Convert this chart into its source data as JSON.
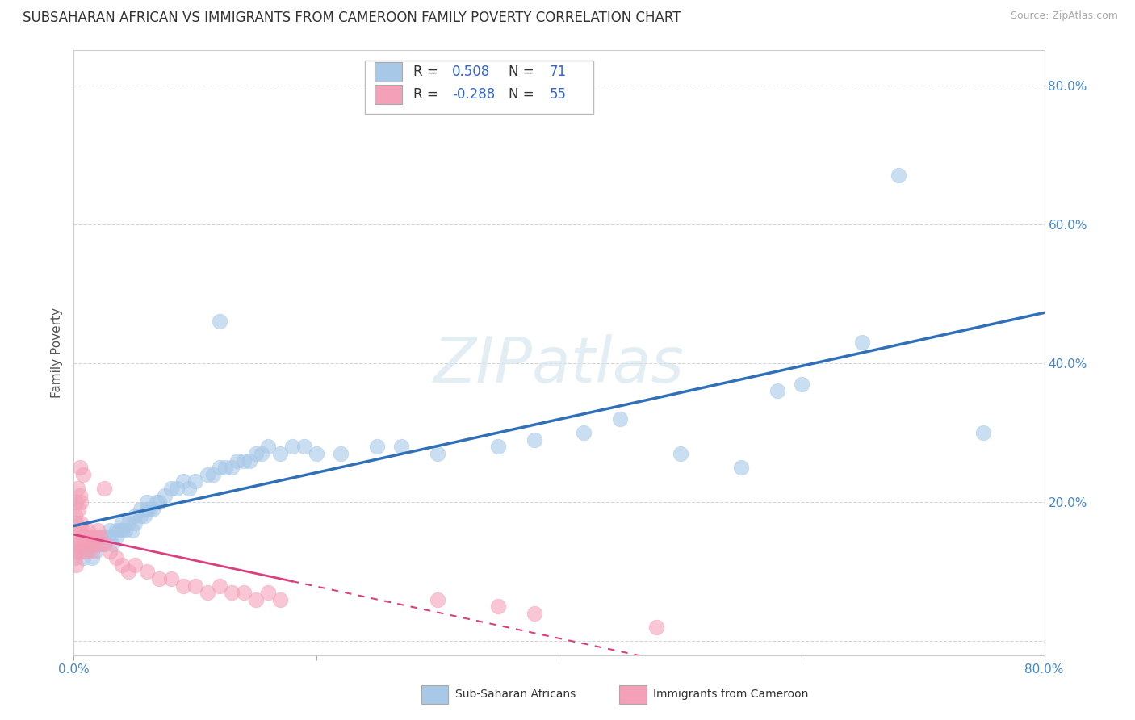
{
  "title": "SUBSAHARAN AFRICAN VS IMMIGRANTS FROM CAMEROON FAMILY POVERTY CORRELATION CHART",
  "source": "Source: ZipAtlas.com",
  "ylabel": "Family Poverty",
  "watermark": "ZIPatlas",
  "blue_color": "#a8c8e8",
  "pink_color": "#f4a0b8",
  "blue_line_color": "#3070b8",
  "pink_line_color": "#d84080",
  "background_color": "#ffffff",
  "grid_color": "#cccccc",
  "tick_color": "#4488cc",
  "xlim": [
    0.0,
    0.8
  ],
  "ylim": [
    -0.02,
    0.85
  ],
  "blue_scatter": [
    [
      0.005,
      0.13
    ],
    [
      0.008,
      0.12
    ],
    [
      0.01,
      0.13
    ],
    [
      0.01,
      0.14
    ],
    [
      0.012,
      0.13
    ],
    [
      0.015,
      0.14
    ],
    [
      0.015,
      0.12
    ],
    [
      0.018,
      0.13
    ],
    [
      0.02,
      0.14
    ],
    [
      0.02,
      0.15
    ],
    [
      0.022,
      0.14
    ],
    [
      0.025,
      0.14
    ],
    [
      0.025,
      0.15
    ],
    [
      0.028,
      0.15
    ],
    [
      0.03,
      0.15
    ],
    [
      0.03,
      0.16
    ],
    [
      0.032,
      0.14
    ],
    [
      0.035,
      0.16
    ],
    [
      0.035,
      0.15
    ],
    [
      0.038,
      0.16
    ],
    [
      0.04,
      0.16
    ],
    [
      0.04,
      0.17
    ],
    [
      0.042,
      0.16
    ],
    [
      0.045,
      0.17
    ],
    [
      0.048,
      0.16
    ],
    [
      0.05,
      0.17
    ],
    [
      0.05,
      0.18
    ],
    [
      0.055,
      0.18
    ],
    [
      0.055,
      0.19
    ],
    [
      0.058,
      0.18
    ],
    [
      0.06,
      0.19
    ],
    [
      0.06,
      0.2
    ],
    [
      0.062,
      0.19
    ],
    [
      0.065,
      0.19
    ],
    [
      0.068,
      0.2
    ],
    [
      0.07,
      0.2
    ],
    [
      0.075,
      0.21
    ],
    [
      0.08,
      0.22
    ],
    [
      0.085,
      0.22
    ],
    [
      0.09,
      0.23
    ],
    [
      0.095,
      0.22
    ],
    [
      0.1,
      0.23
    ],
    [
      0.11,
      0.24
    ],
    [
      0.115,
      0.24
    ],
    [
      0.12,
      0.25
    ],
    [
      0.125,
      0.25
    ],
    [
      0.13,
      0.25
    ],
    [
      0.135,
      0.26
    ],
    [
      0.14,
      0.26
    ],
    [
      0.145,
      0.26
    ],
    [
      0.15,
      0.27
    ],
    [
      0.155,
      0.27
    ],
    [
      0.16,
      0.28
    ],
    [
      0.17,
      0.27
    ],
    [
      0.18,
      0.28
    ],
    [
      0.19,
      0.28
    ],
    [
      0.2,
      0.27
    ],
    [
      0.22,
      0.27
    ],
    [
      0.25,
      0.28
    ],
    [
      0.27,
      0.28
    ],
    [
      0.3,
      0.27
    ],
    [
      0.35,
      0.28
    ],
    [
      0.38,
      0.29
    ],
    [
      0.42,
      0.3
    ],
    [
      0.45,
      0.32
    ],
    [
      0.5,
      0.27
    ],
    [
      0.55,
      0.25
    ],
    [
      0.58,
      0.36
    ],
    [
      0.6,
      0.37
    ],
    [
      0.65,
      0.43
    ],
    [
      0.75,
      0.3
    ],
    [
      0.12,
      0.46
    ],
    [
      0.68,
      0.67
    ]
  ],
  "pink_scatter": [
    [
      0.001,
      0.14
    ],
    [
      0.002,
      0.13
    ],
    [
      0.003,
      0.15
    ],
    [
      0.004,
      0.14
    ],
    [
      0.005,
      0.16
    ],
    [
      0.005,
      0.13
    ],
    [
      0.006,
      0.17
    ],
    [
      0.007,
      0.16
    ],
    [
      0.008,
      0.15
    ],
    [
      0.009,
      0.14
    ],
    [
      0.01,
      0.15
    ],
    [
      0.01,
      0.13
    ],
    [
      0.012,
      0.16
    ],
    [
      0.012,
      0.14
    ],
    [
      0.014,
      0.15
    ],
    [
      0.015,
      0.13
    ],
    [
      0.016,
      0.14
    ],
    [
      0.018,
      0.15
    ],
    [
      0.02,
      0.16
    ],
    [
      0.02,
      0.14
    ],
    [
      0.022,
      0.15
    ],
    [
      0.025,
      0.14
    ],
    [
      0.025,
      0.22
    ],
    [
      0.002,
      0.2
    ],
    [
      0.003,
      0.22
    ],
    [
      0.004,
      0.19
    ],
    [
      0.005,
      0.21
    ],
    [
      0.006,
      0.2
    ],
    [
      0.001,
      0.18
    ],
    [
      0.002,
      0.17
    ],
    [
      0.03,
      0.13
    ],
    [
      0.035,
      0.12
    ],
    [
      0.04,
      0.11
    ],
    [
      0.045,
      0.1
    ],
    [
      0.05,
      0.11
    ],
    [
      0.06,
      0.1
    ],
    [
      0.07,
      0.09
    ],
    [
      0.08,
      0.09
    ],
    [
      0.09,
      0.08
    ],
    [
      0.1,
      0.08
    ],
    [
      0.11,
      0.07
    ],
    [
      0.12,
      0.08
    ],
    [
      0.13,
      0.07
    ],
    [
      0.14,
      0.07
    ],
    [
      0.15,
      0.06
    ],
    [
      0.16,
      0.07
    ],
    [
      0.17,
      0.06
    ],
    [
      0.005,
      0.25
    ],
    [
      0.008,
      0.24
    ],
    [
      0.001,
      0.12
    ],
    [
      0.002,
      0.11
    ],
    [
      0.3,
      0.06
    ],
    [
      0.35,
      0.05
    ],
    [
      0.38,
      0.04
    ],
    [
      0.48,
      0.02
    ]
  ],
  "title_fontsize": 12,
  "axis_label_fontsize": 11,
  "tick_fontsize": 11,
  "legend_fontsize": 12
}
